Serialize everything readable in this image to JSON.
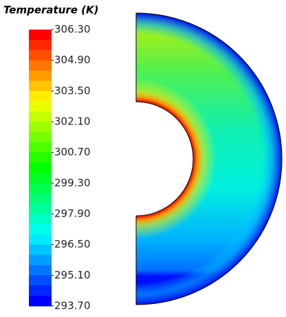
{
  "chart_data": {
    "type": "contour",
    "title": "Temperature (K)",
    "zlim": [
      293.7,
      306.3
    ],
    "zticks": [
      {
        "value": 306.3,
        "label": "306.30"
      },
      {
        "value": 304.9,
        "label": "304.90"
      },
      {
        "value": 303.5,
        "label": "303.50"
      },
      {
        "value": 302.1,
        "label": "302.10"
      },
      {
        "value": 300.7,
        "label": "300.70"
      },
      {
        "value": 299.3,
        "label": "299.30"
      },
      {
        "value": 297.9,
        "label": "297.90"
      },
      {
        "value": 296.5,
        "label": "296.50"
      },
      {
        "value": 295.1,
        "label": "295.10"
      },
      {
        "value": 293.7,
        "label": "293.70"
      }
    ]
  }
}
